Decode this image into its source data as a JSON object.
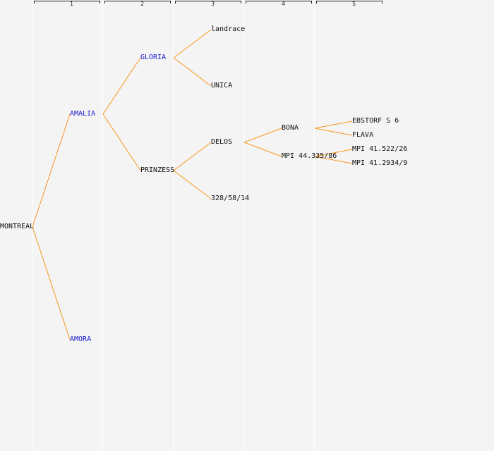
{
  "columns": [
    "1",
    "2",
    "3",
    "4",
    "5"
  ],
  "colors": {
    "edge": "#f7981d",
    "highlight": "#1a1acc",
    "text": "#111111",
    "background": "#f4f4f4"
  },
  "nodes": {
    "montreal": "MONTREAL",
    "amalia": "AMALIA",
    "amora": "AMORA",
    "gloria": "GLORIA",
    "prinzess": "PRINZESS",
    "landrace": "landrace",
    "unica": "UNICA",
    "delos": "DELOS",
    "n328": "328/58/14",
    "bona": "BONA",
    "mpi44": "MPI 44.335/86",
    "ebstorf": "EBSTORF S 6",
    "flava": "FLAVA",
    "mpi41a": "MPI 41.522/26",
    "mpi41b": "MPI 41.2934/9"
  }
}
